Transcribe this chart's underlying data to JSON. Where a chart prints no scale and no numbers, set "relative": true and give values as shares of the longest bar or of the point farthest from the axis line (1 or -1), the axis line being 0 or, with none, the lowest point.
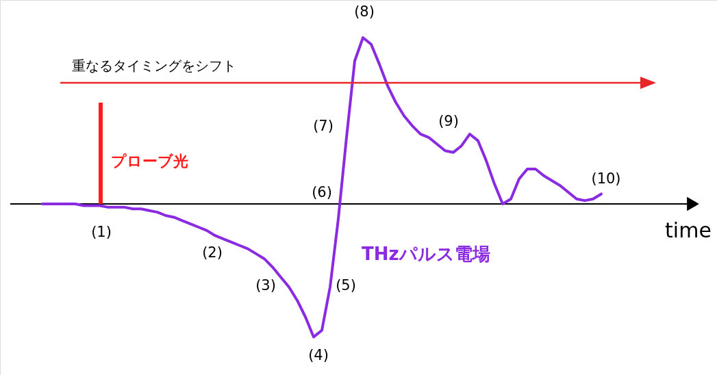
{
  "chart_data": {
    "type": "line",
    "relative": true,
    "xlabel": "time",
    "categories": [
      null,
      null,
      null,
      null,
      null,
      null,
      null,
      null,
      null,
      null,
      null,
      null,
      null,
      null,
      null,
      null,
      null,
      null,
      null,
      null,
      null,
      null,
      null,
      null,
      null,
      null,
      null,
      null,
      null,
      null,
      null,
      null,
      null,
      null,
      null,
      null,
      null,
      null,
      null,
      null,
      null,
      null,
      null,
      null,
      null,
      null,
      null,
      null,
      null,
      null,
      null,
      null,
      null,
      null,
      null,
      null,
      null,
      null,
      null,
      null,
      null,
      null,
      null,
      null,
      null,
      null,
      null,
      null,
      null
    ],
    "series": [
      {
        "name": "THzパルス電場",
        "color": "#8a2be2",
        "values": [
          0,
          0,
          0,
          0,
          0,
          -0.01,
          -0.01,
          -0.01,
          -0.02,
          -0.02,
          -0.02,
          -0.03,
          -0.03,
          -0.04,
          -0.05,
          -0.07,
          -0.08,
          -0.1,
          -0.12,
          -0.14,
          -0.16,
          -0.19,
          -0.21,
          -0.23,
          -0.25,
          -0.27,
          -0.3,
          -0.33,
          -0.38,
          -0.44,
          -0.5,
          -0.58,
          -0.68,
          -0.8,
          -0.76,
          -0.5,
          -0.09,
          0.4,
          0.86,
          1,
          0.96,
          0.84,
          0.71,
          0.61,
          0.53,
          0.47,
          0.42,
          0.4,
          0.36,
          0.32,
          0.31,
          0.35,
          0.42,
          0.38,
          0.26,
          0.12,
          0,
          0.03,
          0.15,
          0.21,
          0.21,
          0.17,
          0.14,
          0.11,
          0.07,
          0.03,
          0.02,
          0.03,
          0.06
        ]
      }
    ],
    "annotations": [
      "重なるタイミングをシフト",
      "プローブ光",
      "(1)",
      "(2)",
      "(3)",
      "(4)",
      "(5)",
      "(6)",
      "(7)",
      "(8)",
      "(9)",
      "(10)"
    ],
    "legend": false,
    "grid": false,
    "marker": "none",
    "line_style": "solid"
  }
}
